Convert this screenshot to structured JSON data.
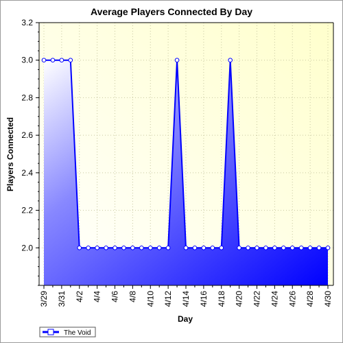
{
  "chart_data": {
    "type": "area",
    "title": "Average Players Connected By Day",
    "xlabel": "Day",
    "ylabel": "Players Connected",
    "ylim": [
      1.8,
      3.2
    ],
    "yticks": [
      "2.0",
      "2.2",
      "2.4",
      "2.6",
      "2.8",
      "3.0",
      "3.2"
    ],
    "x": [
      "3/29",
      "3/30",
      "3/31",
      "4/1",
      "4/2",
      "4/3",
      "4/4",
      "4/5",
      "4/6",
      "4/7",
      "4/8",
      "4/9",
      "4/10",
      "4/11",
      "4/12",
      "4/13",
      "4/14",
      "4/15",
      "4/16",
      "4/17",
      "4/18",
      "4/19",
      "4/20",
      "4/21",
      "4/22",
      "4/23",
      "4/24",
      "4/25",
      "4/26",
      "4/27",
      "4/28",
      "4/29",
      "4/30"
    ],
    "xtick_labels": [
      "3/29",
      "3/31",
      "4/2",
      "4/4",
      "4/6",
      "4/8",
      "4/10",
      "4/12",
      "4/14",
      "4/16",
      "4/18",
      "4/20",
      "4/22",
      "4/24",
      "4/26",
      "4/28",
      "4/30"
    ],
    "series": [
      {
        "name": "The Void",
        "values": [
          3.0,
          3.0,
          3.0,
          3.0,
          2.0,
          2.0,
          2.0,
          2.0,
          2.0,
          2.0,
          2.0,
          2.0,
          2.0,
          2.0,
          2.0,
          3.0,
          2.0,
          2.0,
          2.0,
          2.0,
          2.0,
          3.0,
          2.0,
          2.0,
          2.0,
          2.0,
          2.0,
          2.0,
          2.0,
          2.0,
          2.0,
          2.0,
          2.0
        ]
      }
    ],
    "grid": true,
    "legend": "bottom-left",
    "colors": {
      "series": "#0000ff",
      "plot_bg_corner": "#ffffcc",
      "grid": "#c8c8a0"
    }
  }
}
